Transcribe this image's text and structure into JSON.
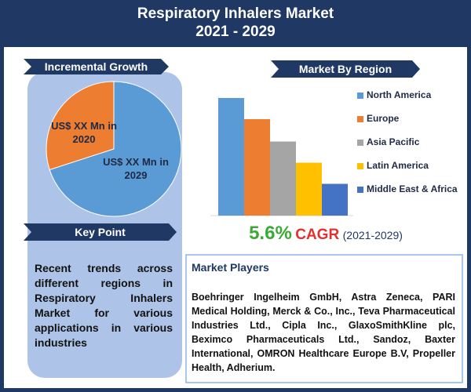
{
  "header": {
    "title": "Respiratory Inhalers Market",
    "subtitle": "2021 - 2029"
  },
  "left_panel": {
    "heading": "Incremental Growth",
    "key_point_heading": "Key Point",
    "key_point_text": "Recent trends across different regions in Respiratory Inhalers Market for various applications in various industries"
  },
  "right_panel": {
    "heading": "Market By Region",
    "cagr": {
      "value": "5.6%",
      "label": "CAGR",
      "period": "(2021-2029)"
    }
  },
  "market_players": {
    "heading": "Market Players",
    "text": "Boehringer Ingelheim GmbH, Astra Zeneca, PARI Medical Holding, Merck & Co., Inc., Teva Pharmaceutical Industries Ltd., Cipla Inc., GlaxoSmithKline plc, Beximco Pharmaceuticals Ltd., Sandoz, Baxter International, OMRON Healthcare Europe B.V, Propeller Health, Adherium."
  },
  "chart_data": [
    {
      "type": "pie",
      "categories": [
        "US$ XX Mn in 2020",
        "US$ XX Mn in 2029"
      ],
      "values": [
        30,
        70
      ],
      "colors": [
        "#ed7d31",
        "#5b9bd5"
      ]
    },
    {
      "type": "bar",
      "categories": [
        "North America",
        "Europe",
        "Asia Pacific",
        "Latin America",
        "Middle East & Africa"
      ],
      "values": [
        100,
        82,
        63,
        45,
        27
      ],
      "colors": [
        "#5b9bd5",
        "#ed7d31",
        "#a5a5a5",
        "#ffc000",
        "#4472c4"
      ],
      "ylim": [
        0,
        100
      ]
    }
  ]
}
